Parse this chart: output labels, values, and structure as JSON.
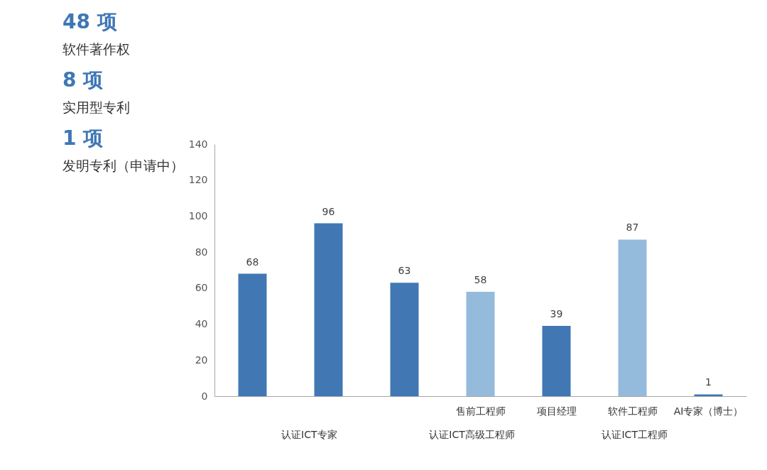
{
  "chart_data": [
    {
      "type": "other",
      "annotations": [
        "48 项",
        "软件著作权",
        "8 项",
        "实用型专利",
        "1 项",
        "发明专利（申请中）"
      ]
    },
    {
      "type": "bar",
      "categories": [
        null,
        null,
        null,
        "售前工程师",
        "项目经理",
        "软件工程师",
        "AI专家（博士）"
      ],
      "values": [
        68,
        96,
        63,
        58,
        39,
        87,
        1
      ],
      "colors": [
        "#4178b4",
        "#4178b4",
        "#4178b4",
        "#95bbdc",
        "#4178b4",
        "#95bbdc",
        "#4178b4"
      ],
      "ylim": [
        0,
        140
      ],
      "yticks": [
        0,
        20,
        40,
        60,
        80,
        100,
        120,
        140
      ],
      "grid": false,
      "data_labels": true,
      "annotations": [
        "认证ICT专家",
        "认证ICT高级工程师",
        "认证ICT工程师"
      ]
    }
  ]
}
